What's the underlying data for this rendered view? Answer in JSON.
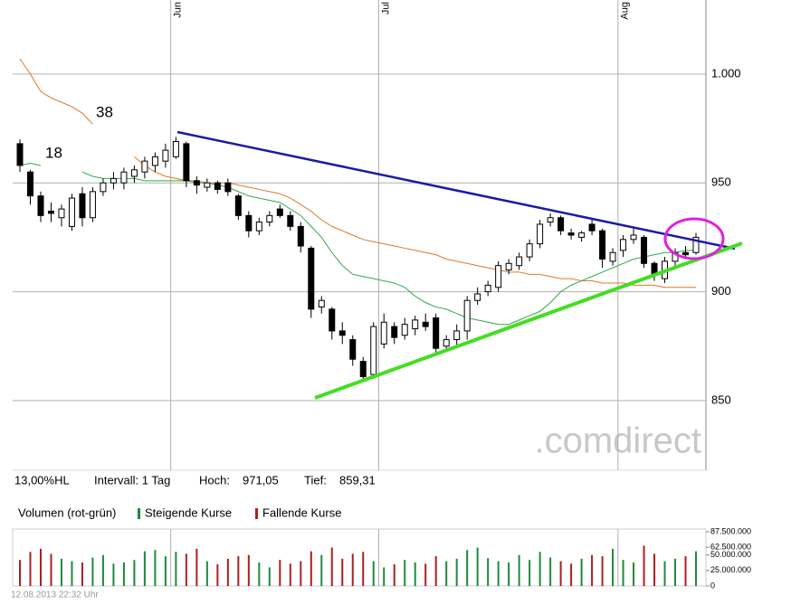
{
  "chart_data": [
    {
      "type": "candlestick",
      "categories": [
        null,
        null,
        null,
        null,
        null,
        null,
        null,
        null,
        null,
        null,
        null,
        null,
        null,
        null,
        null,
        "Jun",
        null,
        null,
        null,
        null,
        null,
        null,
        null,
        null,
        null,
        null,
        null,
        null,
        null,
        null,
        null,
        null,
        null,
        null,
        null,
        "Jul",
        null,
        null,
        null,
        null,
        null,
        null,
        null,
        null,
        null,
        null,
        null,
        null,
        null,
        null,
        null,
        null,
        null,
        null,
        null,
        null,
        null,
        null,
        "Aug",
        null,
        null,
        null,
        null,
        null,
        null,
        null
      ],
      "open": [
        968,
        955,
        944,
        937,
        934,
        930,
        945,
        934,
        946,
        950,
        950,
        953,
        955,
        958,
        960,
        962,
        968,
        951,
        948,
        950,
        950,
        944,
        935,
        928,
        932,
        938,
        935,
        930,
        920,
        893,
        892,
        882,
        878,
        868,
        862,
        876,
        884,
        880,
        883,
        886,
        888,
        875,
        878,
        882,
        896,
        900,
        902,
        910,
        912,
        916,
        922,
        932,
        934,
        927,
        925,
        931,
        928,
        914,
        919,
        924,
        925,
        913,
        906,
        914,
        918,
        918
      ],
      "high": [
        970,
        956,
        946,
        941,
        940,
        945,
        948,
        948,
        952,
        955,
        957,
        958,
        962,
        964,
        968,
        971.05,
        969,
        953,
        952,
        951,
        952,
        945,
        937,
        934,
        937,
        940,
        937,
        932,
        921,
        898,
        893,
        886,
        880,
        870,
        886,
        890,
        886,
        888,
        889,
        890,
        890,
        880,
        885,
        898,
        902,
        905,
        914,
        915,
        918,
        924,
        933,
        936,
        935,
        929,
        928,
        933,
        929,
        920,
        926,
        929,
        926,
        914,
        916,
        920,
        921,
        927
      ],
      "low": [
        955,
        940,
        932,
        932,
        930,
        928,
        930,
        932,
        944,
        947,
        947,
        950,
        952,
        955,
        957,
        961,
        948,
        945,
        946,
        945,
        944,
        933,
        925,
        926,
        930,
        934,
        928,
        918,
        888,
        890,
        878,
        876,
        866,
        859.31,
        860,
        874,
        876,
        878,
        880,
        882,
        872,
        873,
        875,
        878,
        894,
        898,
        900,
        908,
        910,
        914,
        920,
        930,
        926,
        924,
        923,
        926,
        911,
        912,
        916,
        922,
        911,
        905,
        904,
        912,
        915,
        917
      ],
      "close": [
        958,
        944,
        935,
        936,
        938,
        943,
        934,
        946,
        950,
        952,
        955,
        956,
        960,
        962,
        965,
        969,
        951,
        949,
        950,
        947,
        946,
        935,
        928,
        932,
        935,
        935,
        930,
        921,
        892,
        896,
        882,
        880,
        869,
        861,
        884,
        886,
        879,
        885,
        887,
        884,
        874,
        878,
        882,
        896,
        899,
        903,
        912,
        913,
        916,
        922,
        931,
        934,
        928,
        926,
        927,
        928,
        915,
        918,
        924,
        926,
        913,
        908,
        914,
        918,
        917,
        925
      ],
      "series": [
        {
          "name": "38",
          "color": "#e07828",
          "values": [
            1007,
            1000,
            992,
            989,
            987,
            985,
            982,
            977,
            null,
            null,
            null,
            962,
            958,
            955,
            953,
            952,
            951,
            951,
            950,
            950,
            950,
            949,
            948,
            947,
            946,
            945,
            943,
            940,
            937,
            933,
            930,
            928,
            926,
            924,
            923,
            922,
            921,
            920,
            919,
            918,
            917,
            915,
            914,
            913,
            912,
            911,
            910,
            909,
            909,
            908,
            908,
            907,
            906,
            906,
            905,
            905,
            904,
            904,
            904,
            903,
            903,
            903,
            902,
            902,
            902,
            902
          ]
        },
        {
          "name": "18",
          "color": "#2eaa4a",
          "values": [
            958,
            959,
            958,
            null,
            null,
            null,
            955,
            953,
            952,
            952,
            952,
            952,
            951,
            951,
            951,
            951,
            951,
            950,
            950,
            949,
            948,
            946,
            944,
            943,
            942,
            941,
            938,
            935,
            930,
            925,
            918,
            912,
            908,
            907,
            906,
            905,
            904,
            902,
            898,
            895,
            893,
            892,
            890,
            888,
            887,
            886,
            885,
            885,
            887,
            889,
            891,
            895,
            900,
            903,
            905,
            907,
            909,
            911,
            913,
            915,
            916,
            917,
            918,
            918,
            919,
            919
          ]
        }
      ],
      "up_color": "#ffffff",
      "down_color": "#000000",
      "ylim": [
        818,
        1034
      ],
      "yticks": [
        850,
        900,
        950,
        {
          "value": 1000,
          "label": "1.000"
        }
      ],
      "grid": true
    },
    {
      "type": "bar",
      "title": "Volumen (rot-grün)",
      "legend": [
        {
          "name": "Steigende Kurse",
          "color": "#1f8a3c"
        },
        {
          "name": "Fallende Kurse",
          "color": "#b01e1e"
        }
      ],
      "values": [
        42000000,
        55000000,
        60000000,
        52000000,
        44000000,
        40000000,
        38000000,
        46000000,
        50000000,
        36000000,
        38000000,
        42000000,
        56000000,
        58000000,
        48000000,
        55000000,
        52000000,
        60000000,
        40000000,
        35000000,
        44000000,
        48000000,
        50000000,
        38000000,
        30000000,
        42000000,
        36000000,
        40000000,
        56000000,
        50000000,
        62000000,
        44000000,
        52000000,
        55000000,
        40000000,
        30000000,
        35000000,
        42000000,
        38000000,
        36000000,
        48000000,
        40000000,
        44000000,
        58000000,
        62000000,
        45000000,
        40000000,
        38000000,
        50000000,
        42000000,
        55000000,
        46000000,
        40000000,
        36000000,
        44000000,
        50000000,
        48000000,
        60000000,
        42000000,
        38000000,
        65000000,
        52000000,
        40000000,
        44000000,
        48000000,
        56000000
      ],
      "ylim": [
        0,
        87500000
      ],
      "yticks": [
        {
          "value": 87500000,
          "label": "87.500.000"
        },
        {
          "value": 62500000,
          "label": "62.500.000"
        },
        {
          "value": 50000000,
          "label": "50.000.000"
        },
        {
          "value": 25000000,
          "label": "25.000.000"
        },
        0
      ]
    }
  ],
  "info": {
    "range": "13,00%HL",
    "interval": "Intervall: 1 Tag",
    "high_label": "Hoch:",
    "high_value": "971,05",
    "low_label": "Tief:",
    "low_value": "859,31"
  },
  "logo": ".comdirect",
  "footer": "12.08.2013 22:32 Uhr"
}
